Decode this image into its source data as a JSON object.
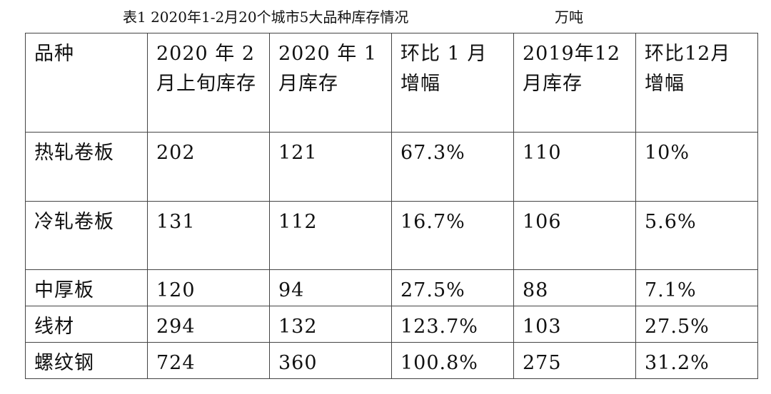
{
  "title": "表1 2020年1-2月20个城市5大品种库存情况",
  "unit": "万吨",
  "table": {
    "headers": [
      "品种",
      "2020 年 2 月上旬库存",
      "2020 年 1 月库存",
      "环比 1 月增幅",
      "2019年12月库存",
      "环比12月增幅"
    ],
    "rows": [
      [
        "热轧卷板",
        "202",
        "121",
        "67.3%",
        "110",
        "10%"
      ],
      [
        "冷轧卷板",
        "131",
        "112",
        "16.7%",
        "106",
        "5.6%"
      ],
      [
        "中厚板",
        "120",
        "94",
        "27.5%",
        "88",
        "7.1%"
      ],
      [
        "线材",
        "294",
        "132",
        "123.7%",
        "103",
        "27.5%"
      ],
      [
        "螺纹钢",
        "724",
        "360",
        "100.8%",
        "275",
        "31.2%"
      ]
    ]
  }
}
